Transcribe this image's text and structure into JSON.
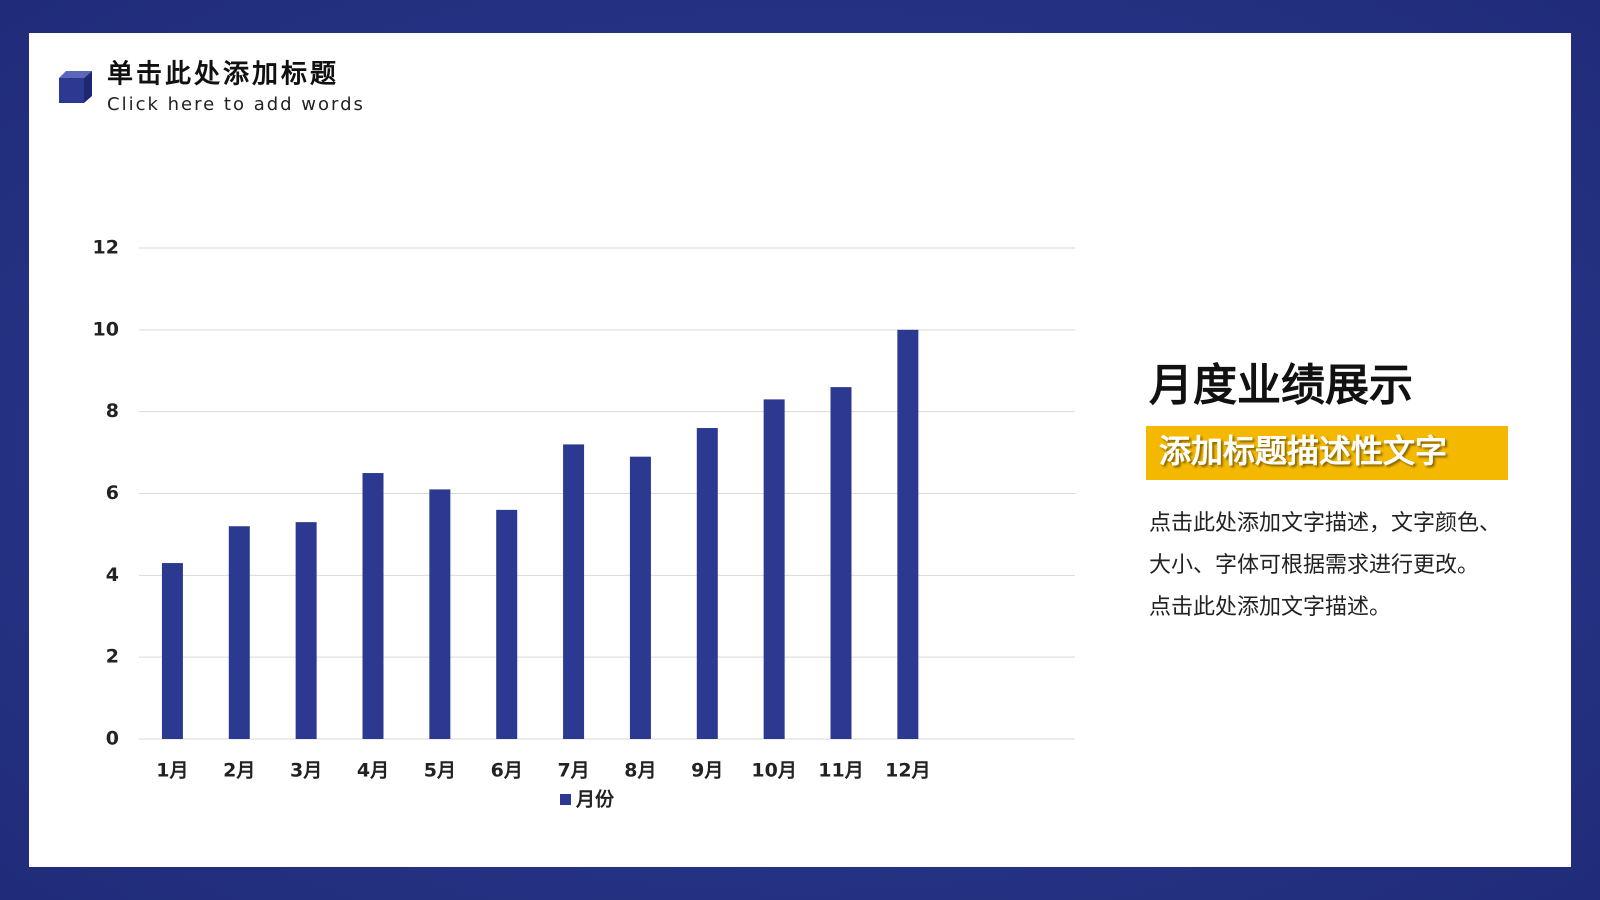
{
  "header": {
    "title": "单击此处添加标题",
    "subtitle": "Click here to add words"
  },
  "chart_data": {
    "type": "bar",
    "categories": [
      "1月",
      "2月",
      "3月",
      "4月",
      "5月",
      "6月",
      "7月",
      "8月",
      "9月",
      "10月",
      "11月",
      "12月"
    ],
    "series": [
      {
        "name": "月份",
        "color": "#2b3990",
        "values": [
          4.3,
          5.2,
          5.3,
          6.5,
          6.1,
          5.6,
          7.2,
          6.9,
          7.6,
          8.3,
          8.6,
          10
        ]
      }
    ],
    "ylim": [
      0,
      12
    ],
    "yticks": [
      0,
      2,
      4,
      6,
      8,
      10,
      12
    ],
    "grid": true,
    "legend": "bottom"
  },
  "panel": {
    "heading": "月度业绩展示",
    "tagline": "添加标题描述性文字",
    "lines": [
      "点击此处添加文字描述，文字颜色、",
      "大小、字体可根据需求进行更改。",
      "点击此处添加文字描述。"
    ]
  }
}
